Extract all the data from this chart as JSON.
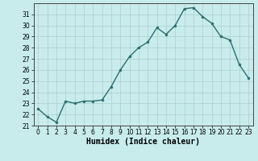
{
  "x": [
    0,
    1,
    2,
    3,
    4,
    5,
    6,
    7,
    8,
    9,
    10,
    11,
    12,
    13,
    14,
    15,
    16,
    17,
    18,
    19,
    20,
    21,
    22,
    23
  ],
  "y": [
    22.5,
    21.8,
    21.3,
    23.2,
    23.0,
    23.2,
    23.2,
    23.3,
    24.5,
    26.0,
    27.2,
    28.0,
    28.5,
    29.8,
    29.2,
    30.0,
    31.5,
    31.6,
    30.8,
    30.2,
    29.0,
    28.7,
    26.5,
    25.3
  ],
  "line_color": "#2d6e6e",
  "marker": "o",
  "marker_size": 2,
  "bg_color": "#c8ecec",
  "grid_color": "#b0cccc",
  "xlabel": "Humidex (Indice chaleur)",
  "xlim": [
    -0.5,
    23.5
  ],
  "ylim": [
    21,
    32
  ],
  "yticks": [
    21,
    22,
    23,
    24,
    25,
    26,
    27,
    28,
    29,
    30,
    31
  ],
  "xticks": [
    0,
    1,
    2,
    3,
    4,
    5,
    6,
    7,
    8,
    9,
    10,
    11,
    12,
    13,
    14,
    15,
    16,
    17,
    18,
    19,
    20,
    21,
    22,
    23
  ],
  "tick_fontsize": 5.5,
  "xlabel_fontsize": 7,
  "linewidth": 1.0
}
